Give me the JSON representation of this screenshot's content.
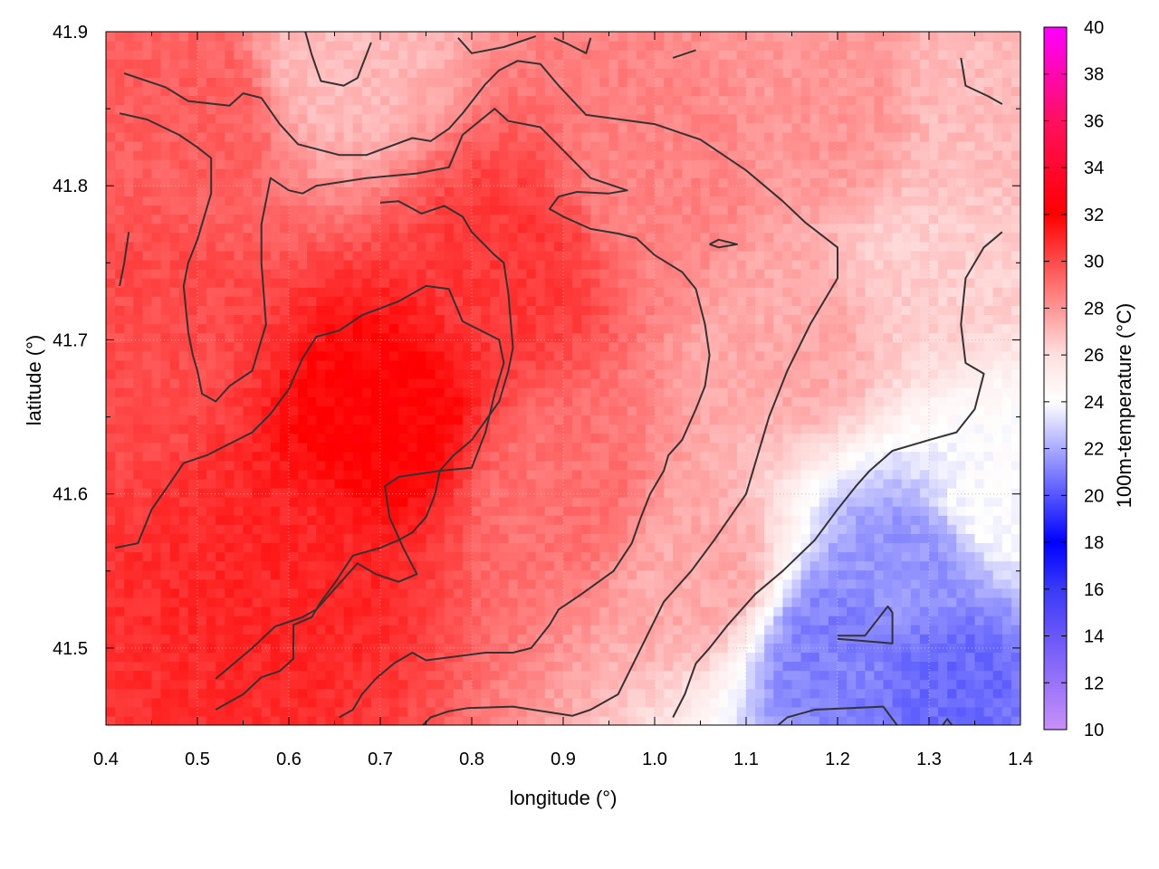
{
  "chart_data": {
    "type": "heatmap",
    "xlabel": "longitude (°)",
    "ylabel": "latitude (°)",
    "colorbar_label": "100m-temperature (°C)",
    "xlim": [
      0.4,
      1.4
    ],
    "ylim": [
      41.45,
      41.9
    ],
    "clim": [
      10,
      40
    ],
    "x_ticks": [
      "0.4",
      "0.5",
      "0.6",
      "0.7",
      "0.8",
      "0.9",
      "1.0",
      "1.1",
      "1.2",
      "1.3",
      "1.4"
    ],
    "y_ticks": [
      "41.5",
      "41.6",
      "41.7",
      "41.8",
      "41.9"
    ],
    "colorbar_ticks": [
      "10",
      "12",
      "14",
      "16",
      "18",
      "20",
      "22",
      "24",
      "26",
      "28",
      "30",
      "32",
      "34",
      "36",
      "38",
      "40"
    ],
    "colormap": [
      [
        10,
        "#c890f8"
      ],
      [
        16,
        "#3a3af8"
      ],
      [
        18,
        "#0000ff"
      ],
      [
        24,
        "#ffffff"
      ],
      [
        26,
        "#ffe0e0"
      ],
      [
        32,
        "#ff0000"
      ],
      [
        36,
        "#ff1060"
      ],
      [
        40,
        "#ff00ff"
      ]
    ],
    "grid": true,
    "field_samples": [
      {
        "lon": 0.5,
        "lat": 41.85,
        "temp": 29.5
      },
      {
        "lon": 0.45,
        "lat": 41.7,
        "temp": 30
      },
      {
        "lon": 0.7,
        "lat": 41.65,
        "temp": 32
      },
      {
        "lon": 0.6,
        "lat": 41.55,
        "temp": 31
      },
      {
        "lon": 0.85,
        "lat": 41.75,
        "temp": 30.5
      },
      {
        "lon": 0.9,
        "lat": 41.6,
        "temp": 29
      },
      {
        "lon": 1.0,
        "lat": 41.8,
        "temp": 28.5
      },
      {
        "lon": 1.05,
        "lat": 41.55,
        "temp": 27.5
      },
      {
        "lon": 1.15,
        "lat": 41.7,
        "temp": 27.5
      },
      {
        "lon": 1.3,
        "lat": 41.75,
        "temp": 26.5
      },
      {
        "lon": 1.35,
        "lat": 41.85,
        "temp": 27
      },
      {
        "lon": 1.2,
        "lat": 41.85,
        "temp": 28
      },
      {
        "lon": 0.65,
        "lat": 41.88,
        "temp": 27
      },
      {
        "lon": 1.2,
        "lat": 41.5,
        "temp": 21
      },
      {
        "lon": 1.28,
        "lat": 41.55,
        "temp": 21.5
      },
      {
        "lon": 1.32,
        "lat": 41.48,
        "temp": 20.5
      },
      {
        "lon": 1.38,
        "lat": 41.6,
        "temp": 24
      }
    ],
    "contours": [
      {
        "level": 26,
        "points": [
          [
            0.42,
            41.873
          ],
          [
            0.465,
            41.864
          ],
          [
            0.49,
            41.855
          ],
          [
            0.535,
            41.852
          ],
          [
            0.55,
            41.86
          ],
          [
            0.57,
            41.857
          ],
          [
            0.59,
            41.84
          ],
          [
            0.61,
            41.827
          ],
          [
            0.655,
            41.82
          ],
          [
            0.685,
            41.82
          ],
          [
            0.735,
            41.831
          ],
          [
            0.755,
            41.829
          ],
          [
            0.775,
            41.837
          ],
          [
            0.79,
            41.847
          ],
          [
            0.815,
            41.866
          ],
          [
            0.83,
            41.875
          ],
          [
            0.85,
            41.881
          ],
          [
            0.875,
            41.879
          ],
          [
            0.895,
            41.865
          ],
          [
            0.925,
            41.846
          ],
          [
            1.0,
            41.84
          ],
          [
            1.05,
            41.83
          ],
          [
            1.1,
            41.81
          ],
          [
            1.12,
            41.8
          ],
          [
            1.14,
            41.79
          ],
          [
            1.165,
            41.776
          ],
          [
            1.2,
            41.76
          ],
          [
            1.2,
            41.74
          ],
          [
            1.17,
            41.71
          ],
          [
            1.145,
            41.68
          ],
          [
            1.125,
            41.65
          ],
          [
            1.1,
            41.6
          ],
          [
            1.065,
            41.57
          ],
          [
            1.04,
            41.55
          ],
          [
            1.01,
            41.53
          ],
          [
            0.985,
            41.5
          ],
          [
            0.96,
            41.47
          ],
          [
            0.93,
            41.46
          ],
          [
            0.91,
            41.456
          ],
          [
            0.845,
            41.462
          ],
          [
            0.795,
            41.461
          ],
          [
            0.775,
            41.459
          ],
          [
            0.755,
            41.455
          ],
          [
            0.745,
            41.449
          ]
        ]
      },
      {
        "level": 26,
        "points": [
          [
            0.618,
            41.9
          ],
          [
            0.625,
            41.885
          ],
          [
            0.635,
            41.868
          ],
          [
            0.66,
            41.865
          ],
          [
            0.675,
            41.87
          ],
          [
            0.69,
            41.893
          ]
        ]
      },
      {
        "level": 26,
        "points": [
          [
            0.785,
            41.896
          ],
          [
            0.8,
            41.886
          ],
          [
            0.835,
            41.89
          ],
          [
            0.87,
            41.897
          ]
        ]
      },
      {
        "level": 26,
        "points": [
          [
            0.89,
            41.896
          ],
          [
            0.905,
            41.892
          ],
          [
            0.925,
            41.886
          ],
          [
            0.93,
            41.896
          ]
        ]
      },
      {
        "level": 26,
        "points": [
          [
            1.02,
            41.883
          ],
          [
            1.045,
            41.888
          ]
        ]
      },
      {
        "level": 26,
        "points": [
          [
            1.335,
            41.883
          ],
          [
            1.34,
            41.865
          ],
          [
            1.365,
            41.858
          ],
          [
            1.38,
            41.853
          ]
        ]
      },
      {
        "level": 26,
        "points": [
          [
            1.135,
            41.45
          ],
          [
            1.145,
            41.455
          ],
          [
            1.175,
            41.46
          ],
          [
            1.25,
            41.462
          ],
          [
            1.265,
            41.45
          ]
        ]
      },
      {
        "level": 24,
        "points": [
          [
            1.02,
            41.455
          ],
          [
            1.033,
            41.47
          ],
          [
            1.045,
            41.49
          ],
          [
            1.06,
            41.5
          ],
          [
            1.08,
            41.515
          ],
          [
            1.11,
            41.535
          ],
          [
            1.14,
            41.55
          ],
          [
            1.175,
            41.57
          ],
          [
            1.2,
            41.59
          ],
          [
            1.22,
            41.605
          ],
          [
            1.235,
            41.615
          ],
          [
            1.26,
            41.628
          ],
          [
            1.3,
            41.635
          ],
          [
            1.33,
            41.64
          ],
          [
            1.35,
            41.655
          ],
          [
            1.36,
            41.678
          ],
          [
            1.34,
            41.685
          ],
          [
            1.335,
            41.71
          ],
          [
            1.34,
            41.74
          ],
          [
            1.36,
            41.76
          ],
          [
            1.38,
            41.77
          ]
        ]
      },
      {
        "level": 24,
        "points": [
          [
            1.2,
            41.506
          ],
          [
            1.26,
            41.503
          ],
          [
            1.26,
            41.523
          ],
          [
            1.255,
            41.527
          ],
          [
            1.23,
            41.508
          ],
          [
            1.2,
            41.508
          ]
        ]
      },
      {
        "level": 24,
        "points": [
          [
            1.315,
            41.45
          ],
          [
            1.32,
            41.454
          ],
          [
            1.325,
            41.45
          ]
        ]
      },
      {
        "level": 28,
        "points": [
          [
            0.415,
            41.847
          ],
          [
            0.445,
            41.843
          ],
          [
            0.48,
            41.833
          ],
          [
            0.5,
            41.825
          ],
          [
            0.515,
            41.818
          ],
          [
            0.515,
            41.795
          ],
          [
            0.51,
            41.785
          ],
          [
            0.5,
            41.765
          ],
          [
            0.49,
            41.75
          ],
          [
            0.485,
            41.735
          ],
          [
            0.49,
            41.705
          ],
          [
            0.495,
            41.69
          ],
          [
            0.5,
            41.68
          ],
          [
            0.505,
            41.665
          ],
          [
            0.52,
            41.66
          ],
          [
            0.535,
            41.67
          ],
          [
            0.56,
            41.68
          ],
          [
            0.57,
            41.7
          ],
          [
            0.575,
            41.71
          ],
          [
            0.57,
            41.75
          ],
          [
            0.57,
            41.775
          ],
          [
            0.58,
            41.805
          ],
          [
            0.6,
            41.797
          ],
          [
            0.615,
            41.795
          ],
          [
            0.63,
            41.8
          ],
          [
            0.685,
            41.805
          ],
          [
            0.74,
            41.808
          ],
          [
            0.775,
            41.812
          ],
          [
            0.79,
            41.833
          ],
          [
            0.825,
            41.85
          ],
          [
            0.84,
            41.842
          ],
          [
            0.875,
            41.838
          ],
          [
            0.905,
            41.82
          ],
          [
            0.93,
            41.805
          ],
          [
            0.97,
            41.797
          ],
          [
            0.95,
            41.795
          ],
          [
            0.915,
            41.796
          ],
          [
            0.895,
            41.793
          ],
          [
            0.885,
            41.785
          ],
          [
            0.9,
            41.78
          ],
          [
            0.93,
            41.772
          ],
          [
            0.96,
            41.769
          ],
          [
            0.98,
            41.766
          ],
          [
            1.0,
            41.755
          ],
          [
            1.03,
            41.744
          ],
          [
            1.045,
            41.733
          ],
          [
            1.055,
            41.71
          ],
          [
            1.06,
            41.69
          ],
          [
            1.055,
            41.67
          ],
          [
            1.045,
            41.655
          ],
          [
            1.03,
            41.635
          ],
          [
            1.015,
            41.625
          ],
          [
            1.01,
            41.615
          ],
          [
            0.995,
            41.6
          ],
          [
            0.985,
            41.585
          ],
          [
            0.975,
            41.568
          ],
          [
            0.955,
            41.55
          ],
          [
            0.92,
            41.535
          ],
          [
            0.895,
            41.525
          ],
          [
            0.885,
            41.515
          ],
          [
            0.865,
            41.5
          ],
          [
            0.845,
            41.497
          ],
          [
            0.815,
            41.497
          ],
          [
            0.75,
            41.492
          ],
          [
            0.735,
            41.497
          ],
          [
            0.715,
            41.49
          ],
          [
            0.695,
            41.48
          ],
          [
            0.68,
            41.47
          ],
          [
            0.67,
            41.46
          ],
          [
            0.655,
            41.455
          ]
        ]
      },
      {
        "level": 28,
        "points": [
          [
            0.52,
            41.46
          ],
          [
            0.55,
            41.47
          ],
          [
            0.57,
            41.481
          ],
          [
            0.59,
            41.485
          ],
          [
            0.605,
            41.493
          ],
          [
            0.605,
            41.515
          ],
          [
            0.625,
            41.52
          ],
          [
            0.635,
            41.53
          ],
          [
            0.65,
            41.542
          ],
          [
            0.67,
            41.56
          ],
          [
            0.7,
            41.565
          ],
          [
            0.72,
            41.57
          ],
          [
            0.735,
            41.575
          ],
          [
            0.75,
            41.585
          ],
          [
            0.76,
            41.6
          ],
          [
            0.765,
            41.615
          ],
          [
            0.78,
            41.625
          ],
          [
            0.8,
            41.635
          ],
          [
            0.83,
            41.66
          ],
          [
            0.84,
            41.68
          ],
          [
            0.845,
            41.695
          ],
          [
            0.84,
            41.73
          ],
          [
            0.835,
            41.75
          ],
          [
            0.825,
            41.755
          ],
          [
            0.8,
            41.77
          ],
          [
            0.79,
            41.78
          ],
          [
            0.77,
            41.787
          ],
          [
            0.745,
            41.782
          ],
          [
            0.72,
            41.79
          ],
          [
            0.7,
            41.789
          ]
        ]
      },
      {
        "level": 28,
        "points": [
          [
            1.06,
            41.762
          ],
          [
            1.07,
            41.765
          ],
          [
            1.09,
            41.762
          ],
          [
            1.07,
            41.76
          ],
          [
            1.06,
            41.762
          ]
        ]
      },
      {
        "level": 28,
        "points": [
          [
            0.415,
            41.735
          ],
          [
            0.42,
            41.75
          ],
          [
            0.425,
            41.77
          ]
        ]
      },
      {
        "level": 30,
        "points": [
          [
            0.41,
            41.565
          ],
          [
            0.435,
            41.568
          ],
          [
            0.45,
            41.59
          ],
          [
            0.47,
            41.607
          ],
          [
            0.485,
            41.62
          ],
          [
            0.51,
            41.625
          ],
          [
            0.56,
            41.64
          ],
          [
            0.58,
            41.652
          ],
          [
            0.6,
            41.668
          ],
          [
            0.615,
            41.688
          ],
          [
            0.63,
            41.702
          ],
          [
            0.655,
            41.706
          ],
          [
            0.68,
            41.716
          ],
          [
            0.72,
            41.725
          ],
          [
            0.75,
            41.735
          ],
          [
            0.775,
            41.733
          ],
          [
            0.79,
            41.712
          ],
          [
            0.83,
            41.7
          ],
          [
            0.835,
            41.685
          ],
          [
            0.825,
            41.665
          ],
          [
            0.815,
            41.64
          ],
          [
            0.8,
            41.617
          ],
          [
            0.765,
            41.615
          ],
          [
            0.72,
            41.611
          ],
          [
            0.705,
            41.605
          ],
          [
            0.71,
            41.585
          ],
          [
            0.725,
            41.565
          ],
          [
            0.74,
            41.548
          ],
          [
            0.72,
            41.543
          ],
          [
            0.695,
            41.548
          ],
          [
            0.675,
            41.555
          ],
          [
            0.66,
            41.545
          ],
          [
            0.645,
            41.535
          ],
          [
            0.63,
            41.525
          ],
          [
            0.615,
            41.52
          ],
          [
            0.6,
            41.517
          ],
          [
            0.585,
            41.514
          ],
          [
            0.56,
            41.5
          ],
          [
            0.54,
            41.49
          ],
          [
            0.52,
            41.48
          ]
        ]
      }
    ]
  }
}
